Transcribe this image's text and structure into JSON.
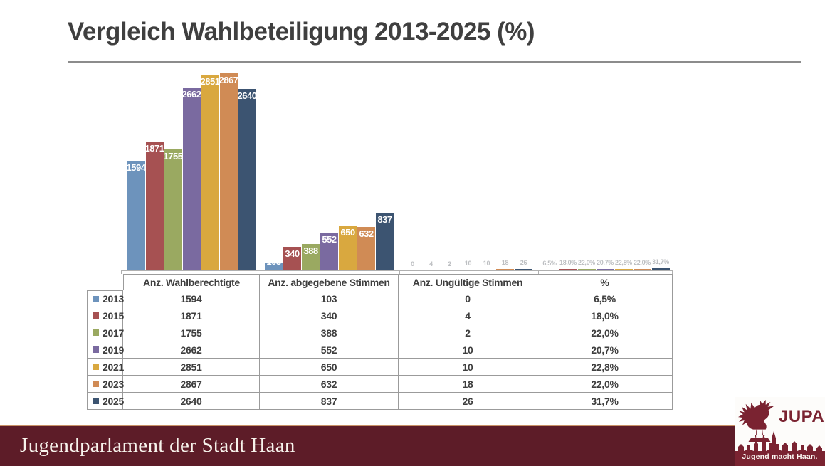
{
  "title": "Vergleich Wahlbeteiligung 2013-2025 (%)",
  "chart_data": {
    "type": "bar",
    "title": "Vergleich Wahlbeteiligung 2013-2025 (%)",
    "categories": [
      "Anz. Wahlberechtigte",
      "Anz. abgegebene Stimmen",
      "Anz. Ungültige Stimmen",
      "%"
    ],
    "series": [
      {
        "name": "2013",
        "color": "#6D93BC",
        "values": [
          1594,
          103,
          0,
          6.5
        ],
        "value_labels": [
          "1594",
          "103",
          "0",
          "6,5%"
        ]
      },
      {
        "name": "2015",
        "color": "#A65152",
        "values": [
          1871,
          340,
          4,
          18.0
        ],
        "value_labels": [
          "1871",
          "340",
          "4",
          "18,0%"
        ]
      },
      {
        "name": "2017",
        "color": "#9AA961",
        "values": [
          1755,
          388,
          2,
          22.0
        ],
        "value_labels": [
          "1755",
          "388",
          "2",
          "22,0%"
        ]
      },
      {
        "name": "2019",
        "color": "#7A6AA0",
        "values": [
          2662,
          552,
          10,
          20.7
        ],
        "value_labels": [
          "2662",
          "552",
          "10",
          "20,7%"
        ]
      },
      {
        "name": "2021",
        "color": "#D9A83F",
        "values": [
          2851,
          650,
          10,
          22.8
        ],
        "value_labels": [
          "2851",
          "650",
          "10",
          "22,8%"
        ]
      },
      {
        "name": "2023",
        "color": "#D08B55",
        "values": [
          2867,
          632,
          18,
          22.0
        ],
        "value_labels": [
          "2867",
          "632",
          "18",
          "22,0%"
        ]
      },
      {
        "name": "2025",
        "color": "#3C5471",
        "values": [
          2640,
          837,
          26,
          31.7
        ],
        "value_labels": [
          "2640",
          "837",
          "26",
          "31,7%"
        ]
      }
    ],
    "ylim": [
      0,
      2900
    ],
    "grid": false,
    "legend_position": "table-row-swatches",
    "value_labels": true
  },
  "table": {
    "headers": [
      "Anz. Wahlberechtigte",
      "Anz. abgegebene Stimmen",
      "Anz. Ungültige Stimmen",
      "%"
    ],
    "rows": [
      {
        "year": "2013",
        "swatch": "#6D93BC",
        "cells": [
          "1594",
          "103",
          "0",
          "6,5%"
        ]
      },
      {
        "year": "2015",
        "swatch": "#A65152",
        "cells": [
          "1871",
          "340",
          "4",
          "18,0%"
        ]
      },
      {
        "year": "2017",
        "swatch": "#9AA961",
        "cells": [
          "1755",
          "388",
          "2",
          "22,0%"
        ]
      },
      {
        "year": "2019",
        "swatch": "#7A6AA0",
        "cells": [
          "2662",
          "552",
          "10",
          "20,7%"
        ]
      },
      {
        "year": "2021",
        "swatch": "#D9A83F",
        "cells": [
          "2851",
          "650",
          "10",
          "22,8%"
        ]
      },
      {
        "year": "2023",
        "swatch": "#D08B55",
        "cells": [
          "2867",
          "632",
          "18",
          "22,0%"
        ]
      },
      {
        "year": "2025",
        "swatch": "#3C5471",
        "cells": [
          "2640",
          "837",
          "26",
          "31,7%"
        ]
      }
    ]
  },
  "footer": {
    "text": "Jugendparlament der Stadt Haan"
  },
  "logo": {
    "wordmark": "JUPA",
    "tagline": "Jugend macht Haan.",
    "rooster_icon": "rooster",
    "skyline_icon": "city-skyline",
    "maroon": "#7A2331"
  },
  "colors": {
    "title_text": "#3F3F3F",
    "rule": "#8C8C8C",
    "axis": "#B0B0B0",
    "table_border": "#9B9B9B",
    "footer_bar": "#5D1C28",
    "footer_top_line": "#C99267",
    "logo_maroon": "#7A2331"
  }
}
